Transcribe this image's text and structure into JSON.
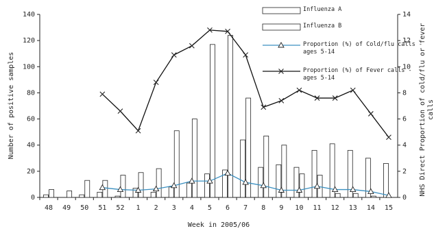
{
  "chart_data": {
    "type": "bar",
    "x_label": "Week in 2005/06",
    "y_label": "Number of positive samples",
    "y2_label": "NHS Direct Proportion of cold/flu or fever calls",
    "categories": [
      "48",
      "49",
      "50",
      "51",
      "52",
      "1",
      "2",
      "3",
      "4",
      "5",
      "6",
      "7",
      "8",
      "9",
      "10",
      "11",
      "12",
      "13",
      "14",
      "15"
    ],
    "ylim": [
      0,
      140
    ],
    "yticks": [
      0,
      20,
      40,
      60,
      80,
      100,
      120,
      140
    ],
    "y2lim": [
      0,
      14
    ],
    "y2ticks": [
      0,
      2,
      4,
      6,
      8,
      10,
      12,
      14
    ],
    "series": [
      {
        "name": "Influenza A",
        "type": "bar",
        "color": "#ffffff",
        "values": [
          2,
          0,
          2,
          4,
          1,
          7,
          4,
          8,
          11,
          18,
          21,
          44,
          23,
          25,
          23,
          36,
          41,
          36,
          30,
          26
        ]
      },
      {
        "name": "Influenza B",
        "type": "bar",
        "color": "#ffffff",
        "values": [
          6,
          5,
          13,
          13,
          17,
          19,
          22,
          51,
          60,
          117,
          124,
          76,
          47,
          40,
          18,
          17,
          3,
          3,
          1,
          0
        ]
      },
      {
        "name": "Proportion (%) of Cold/flu calls - ages 5-14",
        "type": "line",
        "axis": "y2",
        "color": "#3a8fc0",
        "marker": "triangle",
        "values": [
          null,
          null,
          null,
          0.75,
          0.6,
          0.55,
          0.65,
          0.9,
          1.25,
          1.25,
          1.85,
          1.15,
          0.9,
          0.55,
          0.55,
          0.85,
          0.6,
          0.6,
          0.45,
          0.15
        ]
      },
      {
        "name": "Proportion (%) of Fever calls - ages 5-14",
        "type": "line",
        "axis": "y2",
        "color": "#111111",
        "marker": "x",
        "values": [
          null,
          null,
          null,
          7.9,
          6.6,
          5.1,
          8.8,
          10.9,
          11.6,
          12.8,
          12.7,
          10.9,
          6.9,
          7.4,
          8.2,
          7.6,
          7.6,
          8.2,
          6.4,
          4.6
        ]
      }
    ]
  }
}
